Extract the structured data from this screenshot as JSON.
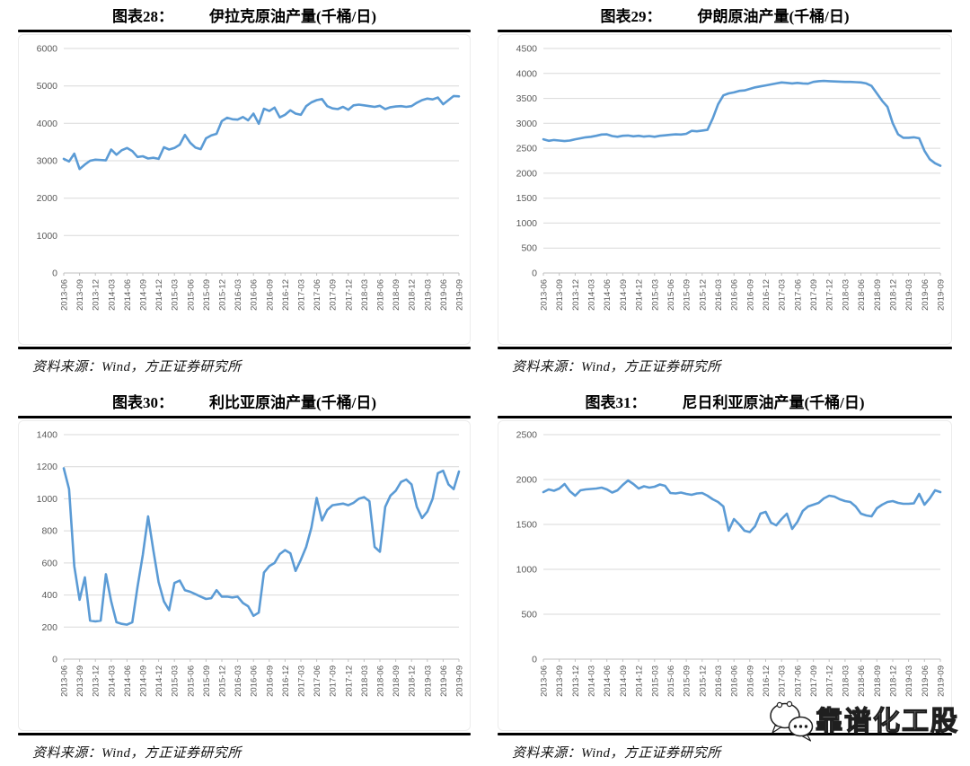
{
  "x_axis": {
    "range": [
      "2013-06",
      "2019-09"
    ],
    "frequency": "monthly",
    "points_per_tick": 3,
    "tick_labels": [
      "2013-06",
      "2013-09",
      "2013-12",
      "2014-03",
      "2014-06",
      "2014-09",
      "2014-12",
      "2015-03",
      "2015-06",
      "2015-09",
      "2015-12",
      "2016-03",
      "2016-06",
      "2016-09",
      "2016-12",
      "2017-03",
      "2017-06",
      "2017-09",
      "2017-12",
      "2018-03",
      "2018-06",
      "2018-09",
      "2018-12",
      "2019-03",
      "2019-06",
      "2019-09"
    ]
  },
  "watermark": {
    "text": "靠谱化工股",
    "icon": "wechat-chat-bubbles-icon"
  },
  "chart_data": [
    {
      "type": "line",
      "figure_label": "图表28：",
      "title": "伊拉克原油产量(千桶/日)",
      "series_name": "伊拉克原油产量",
      "source": "资料来源：Wind，方正证券研究所",
      "ylim": [
        0,
        6000
      ],
      "y_ticks": [
        0,
        1000,
        2000,
        3000,
        4000,
        5000,
        6000
      ],
      "grid": "horizontal",
      "legend": "none",
      "line_color": "#5B9BD5",
      "values": [
        3050,
        2980,
        3190,
        2780,
        2900,
        3000,
        3030,
        3020,
        3010,
        3300,
        3160,
        3280,
        3340,
        3260,
        3100,
        3120,
        3060,
        3080,
        3050,
        3360,
        3300,
        3340,
        3430,
        3690,
        3480,
        3350,
        3310,
        3600,
        3680,
        3720,
        4060,
        4150,
        4110,
        4100,
        4170,
        4080,
        4260,
        3990,
        4390,
        4330,
        4420,
        4160,
        4230,
        4350,
        4260,
        4230,
        4460,
        4560,
        4620,
        4650,
        4460,
        4400,
        4380,
        4440,
        4360,
        4480,
        4500,
        4480,
        4460,
        4440,
        4470,
        4380,
        4430,
        4450,
        4460,
        4440,
        4460,
        4550,
        4620,
        4660,
        4640,
        4690,
        4510,
        4620,
        4730,
        4720
      ]
    },
    {
      "type": "line",
      "figure_label": "图表29：",
      "title": "伊朗原油产量(千桶/日)",
      "series_name": "伊朗原油产量",
      "source": "资料来源：Wind，方正证券研究所",
      "ylim": [
        0,
        4500
      ],
      "y_ticks": [
        0,
        500,
        1000,
        1500,
        2000,
        2500,
        3000,
        3500,
        4000,
        4500
      ],
      "grid": "horizontal",
      "legend": "none",
      "line_color": "#5B9BD5",
      "values": [
        2680,
        2650,
        2665,
        2655,
        2645,
        2655,
        2680,
        2700,
        2720,
        2730,
        2750,
        2775,
        2780,
        2745,
        2730,
        2750,
        2755,
        2740,
        2750,
        2735,
        2745,
        2730,
        2750,
        2760,
        2770,
        2780,
        2775,
        2790,
        2850,
        2840,
        2855,
        2870,
        3100,
        3380,
        3560,
        3600,
        3620,
        3650,
        3660,
        3690,
        3720,
        3740,
        3760,
        3780,
        3800,
        3820,
        3810,
        3800,
        3810,
        3800,
        3795,
        3830,
        3845,
        3850,
        3845,
        3840,
        3835,
        3830,
        3830,
        3825,
        3820,
        3800,
        3750,
        3600,
        3450,
        3330,
        3000,
        2780,
        2710,
        2710,
        2720,
        2700,
        2450,
        2280,
        2200,
        2150
      ]
    },
    {
      "type": "line",
      "figure_label": "图表30：",
      "title": "利比亚原油产量(千桶/日)",
      "series_name": "利比亚原油产量",
      "source": "资料来源：Wind，方正证券研究所",
      "ylim": [
        0,
        1400
      ],
      "y_ticks": [
        0,
        200,
        400,
        600,
        800,
        1000,
        1200,
        1400
      ],
      "grid": "horizontal",
      "legend": "none",
      "line_color": "#5B9BD5",
      "values": [
        1190,
        1060,
        580,
        370,
        510,
        240,
        235,
        240,
        530,
        360,
        230,
        220,
        215,
        230,
        450,
        650,
        890,
        680,
        480,
        360,
        305,
        475,
        490,
        430,
        420,
        405,
        390,
        375,
        380,
        430,
        390,
        390,
        385,
        390,
        350,
        330,
        270,
        290,
        540,
        580,
        600,
        655,
        680,
        660,
        550,
        620,
        700,
        820,
        1005,
        865,
        930,
        960,
        965,
        970,
        960,
        975,
        1000,
        1010,
        985,
        700,
        670,
        950,
        1020,
        1050,
        1105,
        1120,
        1090,
        950,
        880,
        920,
        1000,
        1160,
        1175,
        1090,
        1060,
        1170
      ]
    },
    {
      "type": "line",
      "figure_label": "图表31：",
      "title": "尼日利亚原油产量(千桶/日)",
      "series_name": "尼日利亚原油产量",
      "source": "资料来源：Wind，方正证券研究所",
      "ylim": [
        0,
        2500
      ],
      "y_ticks": [
        0,
        500,
        1000,
        1500,
        2000,
        2500
      ],
      "grid": "horizontal",
      "legend": "none",
      "line_color": "#5B9BD5",
      "values": [
        1860,
        1890,
        1875,
        1900,
        1950,
        1870,
        1820,
        1880,
        1890,
        1895,
        1900,
        1910,
        1890,
        1855,
        1880,
        1940,
        1990,
        1950,
        1900,
        1925,
        1910,
        1920,
        1945,
        1930,
        1850,
        1845,
        1855,
        1840,
        1830,
        1845,
        1850,
        1820,
        1780,
        1750,
        1700,
        1430,
        1560,
        1500,
        1430,
        1415,
        1480,
        1620,
        1640,
        1520,
        1490,
        1560,
        1620,
        1450,
        1530,
        1650,
        1700,
        1720,
        1740,
        1790,
        1820,
        1810,
        1780,
        1760,
        1750,
        1700,
        1620,
        1600,
        1590,
        1680,
        1720,
        1750,
        1760,
        1740,
        1730,
        1730,
        1735,
        1840,
        1720,
        1790,
        1880,
        1860
      ]
    }
  ]
}
